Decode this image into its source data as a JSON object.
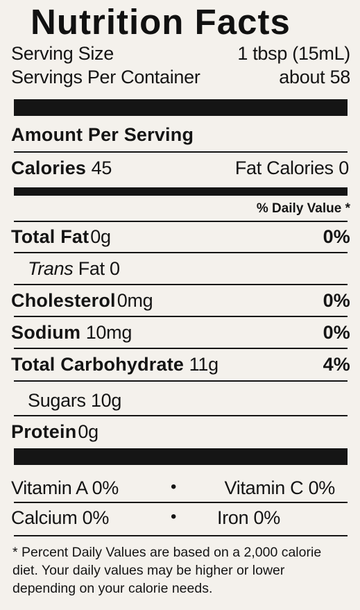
{
  "title": "Nutrition Facts",
  "serving": {
    "size_label": "Serving Size",
    "size_value": "1 tbsp (15mL)",
    "per_container_label": "Servings Per Container",
    "per_container_value": "about 58"
  },
  "amount_header": "Amount Per Serving",
  "calories": {
    "label": "Calories",
    "value": "45",
    "fat_label": "Fat Calories",
    "fat_value": "0"
  },
  "daily_value_header": "% Daily Value *",
  "nutrients": {
    "total_fat": {
      "label": "Total Fat",
      "amount": "0g",
      "dv": "0%"
    },
    "trans_fat": {
      "label_italic": "Trans",
      "label": "Fat",
      "amount": "0"
    },
    "cholesterol": {
      "label": "Cholesterol",
      "amount": "0mg",
      "dv": "0%"
    },
    "sodium": {
      "label": "Sodium",
      "amount": "10mg",
      "dv": "0%"
    },
    "total_carbohydrate": {
      "label": "Total Carbohydrate",
      "amount": "11g",
      "dv": "4%"
    },
    "sugars": {
      "label": "Sugars",
      "amount": "10g"
    },
    "protein": {
      "label": "Protein",
      "amount": "0g"
    }
  },
  "vitamins": {
    "vitamin_a": "Vitamin A 0%",
    "vitamin_c": "Vitamin C 0%",
    "calcium": "Calcium 0%",
    "iron": "Iron 0%",
    "bullet": "•"
  },
  "footnote": "* Percent Daily Values are based on a 2,000 calorie diet. Your daily values may be higher or lower depending on your calorie needs."
}
